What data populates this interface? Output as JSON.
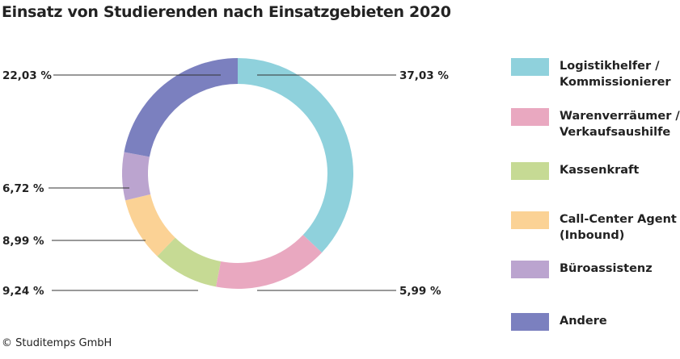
{
  "chart_data": {
    "type": "pie",
    "variant": "donut",
    "title": "Einsatz von Studierenden nach Einsatzgebieten 2020",
    "categories": [
      "Logistikhelfer / Kommissionierer",
      "Warenverräumer / Verkaufsaushilfe",
      "Kassenkraft",
      "Call-Center Agent (Inbound)",
      "Büroassistenz",
      "Andere"
    ],
    "values": [
      37.03,
      5.99,
      9.24,
      8.99,
      6.72,
      22.03
    ],
    "data_labels": [
      "37,03 %",
      "5,99 %",
      "9,24 %",
      "8,99 %",
      "6,72 %",
      "22,03 %"
    ],
    "colors": [
      "#8fd1dc",
      "#e9a8c0",
      "#c6da94",
      "#fbd295",
      "#bba4cf",
      "#7b80bf"
    ],
    "legend": [
      {
        "label": "Logistikhelfer /\nKommissionierer"
      },
      {
        "label": "Warenverräumer /\nVerkaufsaushilfe"
      },
      {
        "label": "Kassenkraft"
      },
      {
        "label": "Call-Center Agent\n(Inbound)"
      },
      {
        "label": "Büroassistenz"
      },
      {
        "label": "Andere"
      }
    ],
    "legend_position": "right"
  },
  "credit": "© Studitemps GmbH"
}
